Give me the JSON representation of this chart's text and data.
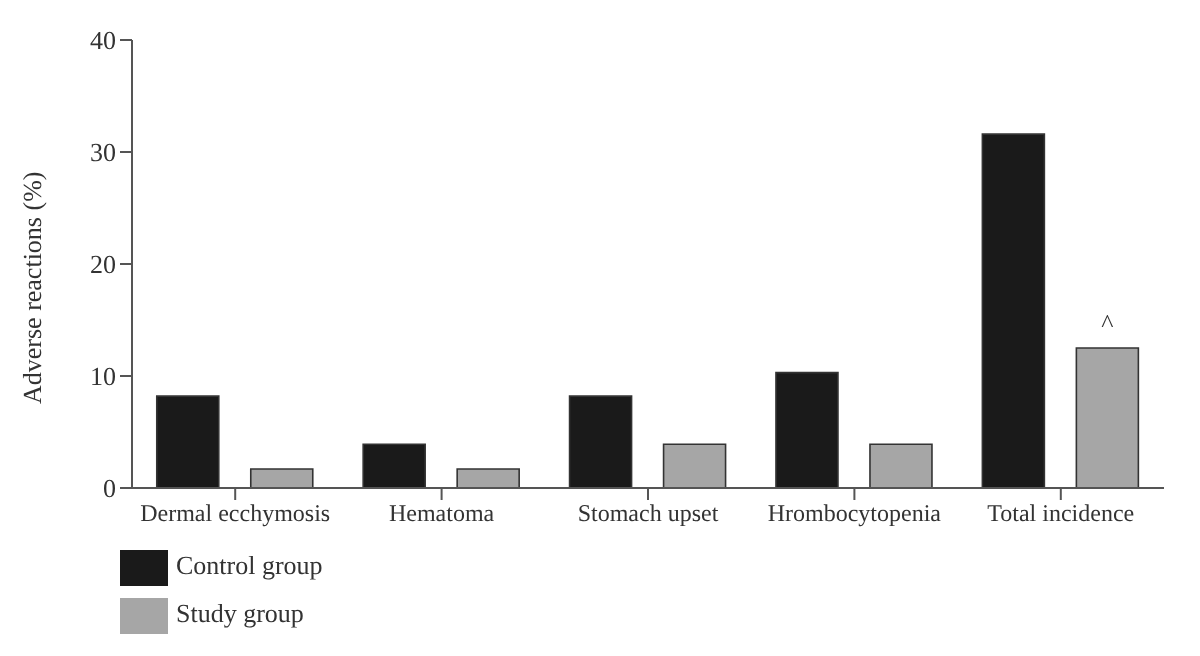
{
  "chart_data": {
    "type": "bar",
    "ylabel": "Adverse reactions (%)",
    "categories": [
      "Dermal ecchymosis",
      "Hematoma",
      "Stomach upset",
      "Hrombocytopenia",
      "Total incidence"
    ],
    "series": [
      {
        "name": "Control group",
        "color": "#1a1a1a",
        "values": [
          8.2,
          3.9,
          8.2,
          10.3,
          31.6
        ]
      },
      {
        "name": "Study group",
        "color": "#a6a6a6",
        "values": [
          1.7,
          1.7,
          3.9,
          3.9,
          12.5
        ]
      }
    ],
    "ylim": [
      0,
      40
    ],
    "yticks": [
      0,
      10,
      20,
      30,
      40
    ],
    "grid": false,
    "legend": "bottom left",
    "annotations": [
      "^"
    ]
  }
}
